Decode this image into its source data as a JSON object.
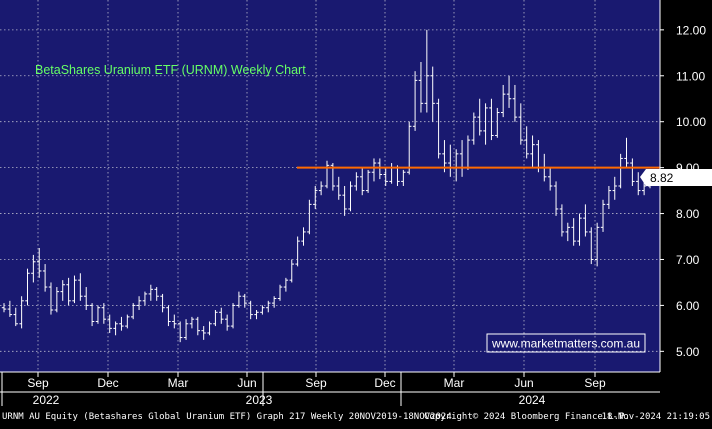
{
  "chart_data": {
    "type": "ohlc",
    "title": "BetaShares Uranium ETF (URNM) Weekly Chart",
    "ylim": [
      4.55,
      12.65
    ],
    "y_ticks": [
      "5.00",
      "6.00",
      "7.00",
      "8.00",
      "9.00",
      "10.00",
      "11.00",
      "12.00"
    ],
    "y_tick_values": [
      5,
      6,
      7,
      8,
      9,
      10,
      11,
      12
    ],
    "month_labels": [
      "Sep",
      "Dec",
      "Mar",
      "Jun",
      "Sep",
      "Dec",
      "Mar",
      "Jun",
      "Sep"
    ],
    "year_labels": [
      "2022",
      "2023",
      "2024"
    ],
    "last_price": "8.82",
    "resistance_level": 9.0,
    "grid": true,
    "series": [
      {
        "values": [
          [
            5.95,
            6.05,
            5.85,
            5.92
          ],
          [
            5.92,
            6.1,
            5.75,
            5.8
          ],
          [
            5.8,
            5.95,
            5.55,
            5.6
          ],
          [
            5.6,
            6.2,
            5.5,
            6.1
          ],
          [
            6.1,
            6.8,
            6.0,
            6.7
          ],
          [
            6.7,
            7.1,
            6.5,
            6.95
          ],
          [
            6.95,
            7.25,
            6.6,
            6.75
          ],
          [
            6.75,
            6.9,
            6.3,
            6.4
          ],
          [
            6.4,
            6.5,
            5.8,
            5.9
          ],
          [
            5.9,
            6.4,
            5.85,
            6.3
          ],
          [
            6.3,
            6.55,
            6.1,
            6.45
          ],
          [
            6.45,
            6.6,
            6.0,
            6.1
          ],
          [
            6.1,
            6.65,
            6.05,
            6.55
          ],
          [
            6.55,
            6.7,
            6.1,
            6.2
          ],
          [
            6.2,
            6.4,
            5.9,
            6.0
          ],
          [
            6.0,
            6.05,
            5.55,
            5.65
          ],
          [
            5.65,
            6.0,
            5.6,
            5.95
          ],
          [
            5.95,
            6.05,
            5.6,
            5.7
          ],
          [
            5.7,
            5.8,
            5.4,
            5.5
          ],
          [
            5.5,
            5.65,
            5.35,
            5.6
          ],
          [
            5.6,
            5.75,
            5.45,
            5.55
          ],
          [
            5.55,
            5.8,
            5.5,
            5.75
          ],
          [
            5.75,
            6.05,
            5.7,
            6.0
          ],
          [
            6.0,
            6.2,
            5.9,
            6.1
          ],
          [
            6.1,
            6.3,
            6.0,
            6.25
          ],
          [
            6.25,
            6.45,
            6.1,
            6.35
          ],
          [
            6.35,
            6.4,
            6.1,
            6.2
          ],
          [
            6.2,
            6.25,
            5.85,
            5.95
          ],
          [
            5.95,
            6.0,
            5.55,
            5.65
          ],
          [
            5.65,
            5.8,
            5.5,
            5.6
          ],
          [
            5.6,
            5.65,
            5.2,
            5.3
          ],
          [
            5.3,
            5.7,
            5.25,
            5.6
          ],
          [
            5.6,
            5.75,
            5.5,
            5.7
          ],
          [
            5.7,
            5.75,
            5.35,
            5.45
          ],
          [
            5.45,
            5.55,
            5.25,
            5.4
          ],
          [
            5.4,
            5.65,
            5.35,
            5.6
          ],
          [
            5.6,
            5.9,
            5.55,
            5.85
          ],
          [
            5.85,
            5.95,
            5.6,
            5.7
          ],
          [
            5.7,
            5.8,
            5.45,
            5.55
          ],
          [
            5.55,
            6.05,
            5.5,
            6.0
          ],
          [
            6.0,
            6.3,
            5.95,
            6.2
          ],
          [
            6.2,
            6.25,
            5.95,
            6.05
          ],
          [
            6.05,
            6.1,
            5.7,
            5.8
          ],
          [
            5.8,
            5.9,
            5.7,
            5.85
          ],
          [
            5.85,
            6.0,
            5.8,
            5.95
          ],
          [
            5.95,
            6.1,
            5.85,
            6.05
          ],
          [
            6.05,
            6.2,
            5.95,
            6.15
          ],
          [
            6.15,
            6.45,
            6.1,
            6.4
          ],
          [
            6.4,
            6.6,
            6.3,
            6.55
          ],
          [
            6.55,
            7.0,
            6.5,
            6.9
          ],
          [
            6.9,
            7.5,
            6.85,
            7.4
          ],
          [
            7.4,
            7.7,
            7.3,
            7.6
          ],
          [
            7.6,
            8.3,
            7.55,
            8.2
          ],
          [
            8.2,
            8.6,
            8.1,
            8.5
          ],
          [
            8.5,
            8.7,
            8.4,
            8.6
          ],
          [
            8.6,
            9.15,
            8.55,
            9.05
          ],
          [
            9.05,
            9.1,
            8.5,
            8.6
          ],
          [
            8.6,
            8.8,
            8.3,
            8.4
          ],
          [
            8.4,
            8.6,
            7.95,
            8.1
          ],
          [
            8.1,
            8.7,
            8.05,
            8.6
          ],
          [
            8.6,
            8.9,
            8.5,
            8.8
          ],
          [
            8.8,
            9.0,
            8.4,
            8.5
          ],
          [
            8.5,
            8.95,
            8.45,
            8.9
          ],
          [
            8.9,
            9.2,
            8.7,
            9.1
          ],
          [
            9.1,
            9.2,
            8.75,
            8.85
          ],
          [
            8.85,
            9.0,
            8.6,
            8.7
          ],
          [
            8.7,
            9.1,
            8.65,
            9.0
          ],
          [
            9.0,
            9.05,
            8.6,
            8.7
          ],
          [
            8.7,
            8.95,
            8.6,
            8.9
          ],
          [
            8.9,
            10.0,
            8.85,
            9.9
          ],
          [
            9.9,
            11.1,
            9.8,
            10.9
          ],
          [
            10.9,
            11.3,
            10.2,
            10.4
          ],
          [
            10.4,
            12.0,
            10.2,
            11.0
          ],
          [
            11.0,
            11.2,
            10.0,
            10.4
          ],
          [
            10.4,
            10.5,
            9.2,
            9.3
          ],
          [
            9.3,
            9.6,
            8.9,
            9.1
          ],
          [
            9.1,
            9.5,
            8.8,
            9.0
          ],
          [
            9.0,
            9.4,
            8.7,
            9.3
          ],
          [
            9.3,
            9.6,
            8.8,
            9.0
          ],
          [
            9.0,
            9.7,
            8.95,
            9.6
          ],
          [
            9.6,
            10.2,
            9.5,
            10.1
          ],
          [
            10.1,
            10.5,
            9.7,
            9.8
          ],
          [
            9.8,
            10.4,
            9.5,
            10.3
          ],
          [
            10.3,
            10.5,
            9.6,
            9.7
          ],
          [
            9.7,
            10.3,
            9.65,
            10.2
          ],
          [
            10.2,
            10.8,
            10.1,
            10.6
          ],
          [
            10.6,
            11.0,
            10.3,
            10.5
          ],
          [
            10.5,
            10.8,
            10.0,
            10.1
          ],
          [
            10.1,
            10.4,
            9.5,
            9.6
          ],
          [
            9.6,
            9.9,
            9.2,
            9.3
          ],
          [
            9.3,
            9.7,
            9.0,
            9.5
          ],
          [
            9.5,
            9.6,
            8.9,
            9.0
          ],
          [
            9.0,
            9.3,
            8.7,
            8.8
          ],
          [
            8.8,
            9.0,
            8.5,
            8.6
          ],
          [
            8.6,
            8.7,
            7.95,
            8.1
          ],
          [
            8.1,
            8.2,
            7.5,
            7.6
          ],
          [
            7.6,
            7.8,
            7.4,
            7.7
          ],
          [
            7.7,
            7.9,
            7.3,
            7.4
          ],
          [
            7.4,
            8.0,
            7.3,
            7.9
          ],
          [
            7.9,
            8.2,
            7.5,
            7.6
          ],
          [
            7.6,
            7.7,
            6.9,
            7.0
          ],
          [
            7.0,
            7.8,
            6.85,
            7.7
          ],
          [
            7.7,
            8.3,
            7.6,
            8.2
          ],
          [
            8.2,
            8.6,
            8.1,
            8.5
          ],
          [
            8.5,
            8.8,
            8.3,
            8.6
          ],
          [
            8.6,
            9.3,
            8.55,
            9.2
          ],
          [
            9.2,
            9.65,
            9.0,
            9.1
          ],
          [
            9.1,
            9.2,
            8.6,
            8.7
          ],
          [
            8.7,
            8.9,
            8.4,
            8.5
          ],
          [
            8.5,
            8.75,
            8.4,
            8.6
          ],
          [
            8.6,
            8.9,
            8.55,
            8.82
          ]
        ]
      }
    ]
  },
  "watermark": "www.marketmatters.com.au",
  "footer": {
    "left": "URNM AU Equity (Betashares Global Uranium ETF) Graph 217  Weekly 20NOV2019-18NOV2024",
    "center": "Copyright© 2024 Bloomberg Finance L.P.",
    "right": "18-Nov-2024 21:19:05"
  },
  "colors": {
    "plot_bg": "#191970",
    "grid": "#b8b8cc",
    "bars": "#ffffff",
    "title": "#66ff66",
    "resistance": "#ff6a00",
    "watermark_border": "#ffffff",
    "watermark_text": "#ffffff"
  }
}
